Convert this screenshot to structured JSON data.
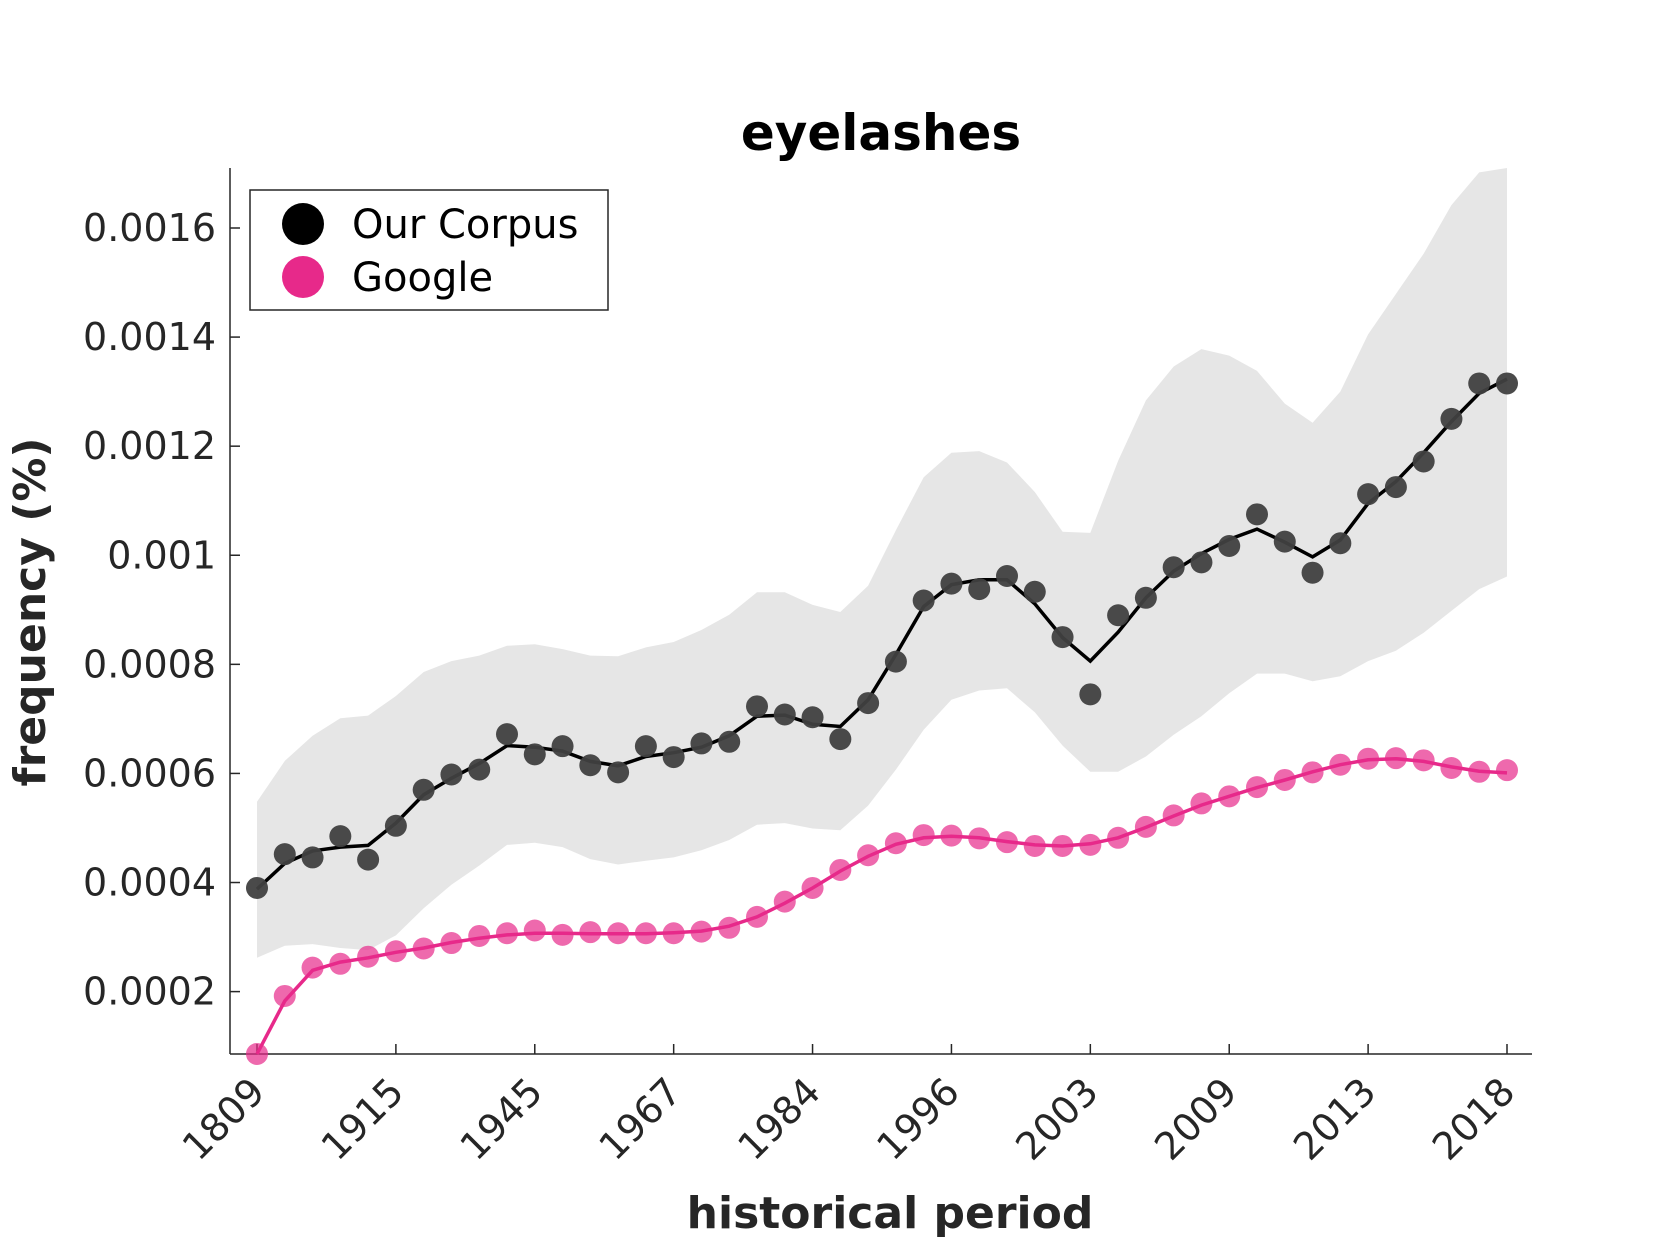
{
  "chart_data": {
    "type": "line",
    "title": "eyelashes",
    "xlabel": "historical period",
    "ylabel": "frequency (%)",
    "ylim": [
      8.56e-05,
      0.00171
    ],
    "ytick_values": [
      0.0002,
      0.0004,
      0.0006,
      0.0008,
      0.001,
      0.0012,
      0.0014,
      0.0016
    ],
    "ytick_labels": [
      "0.0002",
      "0.0004",
      "0.0006",
      "0.0008",
      "0.001",
      "0.0012",
      "0.0014",
      "0.0016"
    ],
    "xtick_labels": [
      "1809",
      "1915",
      "1945",
      "1967",
      "1984",
      "1996",
      "2003",
      "2009",
      "2013",
      "2018"
    ],
    "xtick_positions": [
      0,
      5,
      10,
      15,
      20,
      25,
      30,
      35,
      40,
      45
    ],
    "n_points": 46,
    "legend_position": "top-left",
    "colors": {
      "corpus": "#000000",
      "corpus_points": "#404040",
      "google": "#e7298a",
      "band": "#e6e6e6"
    },
    "series": [
      {
        "name": "Our Corpus",
        "points": [
          0.00039,
          0.000452,
          0.000446,
          0.000485,
          0.000442,
          0.000504,
          0.00057,
          0.000598,
          0.000607,
          0.000672,
          0.000635,
          0.00065,
          0.000615,
          0.000602,
          0.00065,
          0.00063,
          0.000655,
          0.000658,
          0.000723,
          0.000708,
          0.000703,
          0.000663,
          0.000729,
          0.000805,
          0.000917,
          0.000948,
          0.000938,
          0.000962,
          0.000933,
          0.00085,
          0.000745,
          0.00089,
          0.000922,
          0.000978,
          0.000987,
          0.001017,
          0.001075,
          0.001025,
          0.000968,
          0.001022,
          0.001112,
          0.001125,
          0.001172,
          0.00125,
          0.001315,
          0.001315
        ],
        "line": [
          0.000388,
          0.000435,
          0.000458,
          0.000465,
          0.000468,
          0.000509,
          0.000561,
          0.000591,
          0.000618,
          0.000651,
          0.000648,
          0.000641,
          0.000622,
          0.000614,
          0.000631,
          0.000638,
          0.000648,
          0.000669,
          0.000705,
          0.000707,
          0.00069,
          0.000686,
          0.000735,
          0.000818,
          0.000906,
          0.000946,
          0.000955,
          0.000955,
          0.000911,
          0.000849,
          0.000806,
          0.000859,
          0.000922,
          0.000971,
          0.001003,
          0.001029,
          0.001048,
          0.001024,
          0.000997,
          0.001028,
          0.001095,
          0.001135,
          0.001188,
          0.001245,
          0.001297,
          0.001323
        ],
        "band_upper": [
          0.000548,
          0.000623,
          0.000669,
          0.000701,
          0.000706,
          0.000742,
          0.000786,
          0.000806,
          0.000816,
          0.000834,
          0.000837,
          0.000828,
          0.000816,
          0.000815,
          0.000831,
          0.000841,
          0.000863,
          0.000891,
          0.000932,
          0.000932,
          0.000909,
          0.000896,
          0.000944,
          0.001046,
          0.001143,
          0.001188,
          0.001191,
          0.00117,
          0.001116,
          0.001043,
          0.001041,
          0.001173,
          0.001284,
          0.001346,
          0.001378,
          0.001366,
          0.001338,
          0.001278,
          0.001243,
          0.0013,
          0.001405,
          0.001479,
          0.001553,
          0.001642,
          0.001702,
          0.00171
        ],
        "band_lower": [
          0.000262,
          0.000284,
          0.000287,
          0.00028,
          0.000276,
          0.000303,
          0.000353,
          0.000396,
          0.000431,
          0.000469,
          0.000473,
          0.000465,
          0.000443,
          0.000433,
          0.00044,
          0.000446,
          0.000459,
          0.000478,
          0.000506,
          0.000509,
          0.000499,
          0.000496,
          0.000541,
          0.000607,
          0.00068,
          0.000735,
          0.000752,
          0.000756,
          0.000712,
          0.000651,
          0.000603,
          0.000603,
          0.000631,
          0.000671,
          0.000705,
          0.000747,
          0.000783,
          0.000783,
          0.000769,
          0.000778,
          0.000806,
          0.000825,
          0.000858,
          0.000898,
          0.000938,
          0.000961
        ]
      },
      {
        "name": "Google",
        "points": [
          8.56e-05,
          0.000192,
          0.000244,
          0.000251,
          0.000264,
          0.000274,
          0.000279,
          0.000289,
          0.000302,
          0.000307,
          0.000312,
          0.000304,
          0.000309,
          0.000307,
          0.000307,
          0.000307,
          0.00031,
          0.000317,
          0.000337,
          0.000365,
          0.00039,
          0.000423,
          0.00045,
          0.000472,
          0.000487,
          0.000486,
          0.000481,
          0.000474,
          0.000467,
          0.000467,
          0.000469,
          0.000482,
          0.000502,
          0.000523,
          0.000545,
          0.000558,
          0.000575,
          0.000588,
          0.000602,
          0.000616,
          0.000627,
          0.000628,
          0.000624,
          0.00061,
          0.000603,
          0.000606
        ],
        "line": [
          8.56e-05,
          0.000183,
          0.000239,
          0.000254,
          0.000262,
          0.000272,
          0.00028,
          0.00029,
          0.000298,
          0.000304,
          0.000307,
          0.000307,
          0.000306,
          0.000306,
          0.000306,
          0.000308,
          0.000311,
          0.00032,
          0.000337,
          0.000362,
          0.00039,
          0.000421,
          0.000448,
          0.00047,
          0.000482,
          0.000485,
          0.000482,
          0.000475,
          0.000469,
          0.000467,
          0.000471,
          0.000482,
          0.000501,
          0.000522,
          0.000542,
          0.000558,
          0.000574,
          0.000588,
          0.000603,
          0.000616,
          0.000625,
          0.000627,
          0.000622,
          0.000612,
          0.000604,
          0.000601
        ]
      }
    ]
  }
}
